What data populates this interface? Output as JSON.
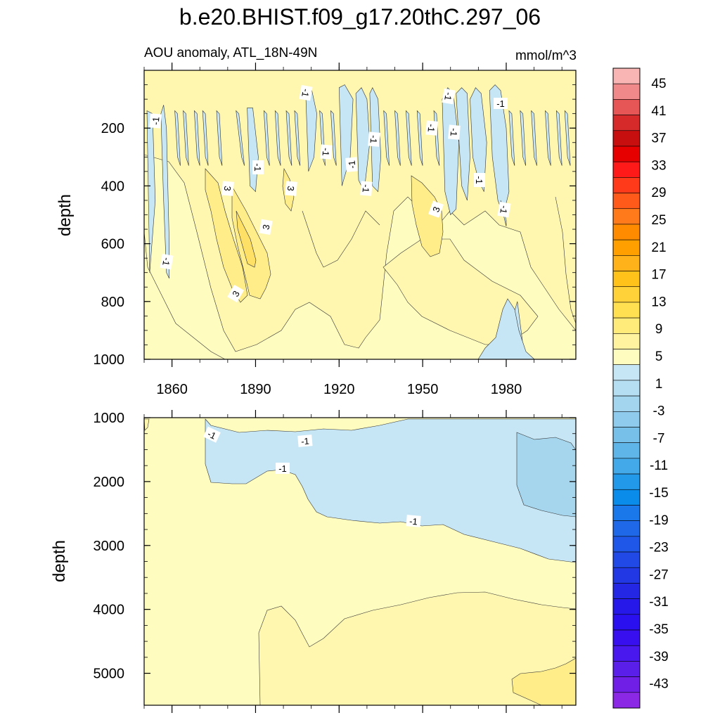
{
  "title": "b.e20.BHIST.f09_g17.20thC.297_06",
  "subtitle_left": "AOU anomaly, ATL_18N-49N",
  "subtitle_right": "mmol/m^3",
  "chart_data": [
    {
      "type": "heatmap",
      "panel": "upper",
      "ylabel": "depth",
      "ylim": [
        0,
        1000
      ],
      "yticks": [
        200,
        400,
        600,
        800,
        1000
      ],
      "xlim": [
        1850,
        2005
      ],
      "xticks": [
        1860,
        1890,
        1920,
        1950,
        1980
      ],
      "xtick_labels": [
        "1860",
        "1890",
        "1920",
        "1950",
        "1980"
      ],
      "background_range": "1 to 5",
      "regions": [
        {
          "range": "-3 to 1",
          "x": [
            [
              1851,
              1853,
              1854,
              1852
            ],
            [
              1856,
              1857,
              1858,
              1859,
              1859,
              1858,
              1857
            ],
            [
              1861,
              1862,
              1863,
              1862
            ],
            [
              1864,
              1865,
              1866,
              1865
            ],
            [
              1868,
              1869,
              1870,
              1869
            ],
            [
              1871,
              1872,
              1873,
              1872
            ],
            [
              1876,
              1877,
              1878,
              1877
            ],
            [
              1883,
              1884,
              1886,
              1885
            ],
            [
              1887,
              1889,
              1891,
              1890,
              1888
            ],
            [
              1893,
              1894,
              1895,
              1894
            ],
            [
              1897,
              1898,
              1899,
              1898
            ],
            [
              1901,
              1902,
              1903,
              1902
            ],
            [
              1904,
              1905,
              1906,
              1905
            ],
            [
              1908,
              1910,
              1912,
              1911,
              1909
            ],
            [
              1913,
              1914,
              1915,
              1914
            ],
            [
              1917,
              1918,
              1919,
              1918
            ],
            [
              1920,
              1922,
              1925,
              1924,
              1921
            ],
            [
              1926,
              1928,
              1930,
              1931,
              1929,
              1927
            ],
            [
              1931,
              1932,
              1934,
              1935,
              1934,
              1932
            ],
            [
              1936,
              1937,
              1938,
              1937
            ],
            [
              1940,
              1941,
              1942,
              1941
            ],
            [
              1944,
              1945,
              1946,
              1945
            ],
            [
              1948,
              1949,
              1950,
              1949
            ],
            [
              1954,
              1955,
              1956,
              1955
            ],
            [
              1957,
              1959,
              1961,
              1963,
              1962,
              1960,
              1958
            ],
            [
              1962,
              1964,
              1966,
              1967,
              1966,
              1964
            ],
            [
              1967,
              1969,
              1971,
              1973,
              1972,
              1970,
              1968
            ],
            [
              1974,
              1976,
              1978,
              1980,
              1981,
              1979,
              1977,
              1975
            ],
            [
              1978,
              1979,
              1980,
              1980,
              1979
            ],
            [
              1981,
              1982,
              1983,
              1982
            ],
            [
              1985,
              1986,
              1987,
              1986
            ],
            [
              1989,
              1990,
              1991,
              1990
            ],
            [
              1994,
              1995,
              1996,
              1995
            ],
            [
              1998,
              1999,
              2000,
              1999
            ],
            [
              2001,
              2002,
              2003,
              2002
            ],
            [
              1978,
              1981,
              1984,
              1986,
              1988
            ]
          ],
          "y": [
            [
              140,
              150,
              450,
              700
            ],
            [
              150,
              120,
              200,
              600,
              720,
              700,
              450
            ],
            [
              140,
              150,
              330,
              300
            ],
            [
              140,
              150,
              330,
              300
            ],
            [
              140,
              150,
              330,
              300
            ],
            [
              140,
              150,
              330,
              300
            ],
            [
              140,
              150,
              330,
              300
            ],
            [
              140,
              150,
              330,
              300
            ],
            [
              130,
              130,
              300,
              420,
              400
            ],
            [
              140,
              150,
              330,
              300
            ],
            [
              140,
              150,
              330,
              300
            ],
            [
              140,
              150,
              330,
              300
            ],
            [
              140,
              150,
              330,
              300
            ],
            [
              80,
              60,
              150,
              300,
              350
            ],
            [
              140,
              150,
              330,
              300
            ],
            [
              140,
              150,
              330,
              300
            ],
            [
              60,
              50,
              100,
              300,
              400
            ],
            [
              80,
              60,
              100,
              250,
              420,
              380
            ],
            [
              80,
              60,
              100,
              300,
              420,
              400
            ],
            [
              140,
              150,
              330,
              300
            ],
            [
              140,
              150,
              330,
              300
            ],
            [
              140,
              150,
              330,
              300
            ],
            [
              140,
              150,
              330,
              300
            ],
            [
              140,
              150,
              330,
              300
            ],
            [
              100,
              60,
              80,
              250,
              480,
              500,
              420
            ],
            [
              80,
              60,
              80,
              300,
              450,
              400
            ],
            [
              100,
              60,
              80,
              250,
              420,
              380,
              300
            ],
            [
              70,
              50,
              70,
              200,
              420,
              500,
              450,
              300
            ],
            [
              450,
              480,
              520,
              540,
              500
            ],
            [
              140,
              150,
              330,
              300
            ],
            [
              140,
              150,
              330,
              300
            ],
            [
              140,
              150,
              330,
              300
            ],
            [
              140,
              150,
              330,
              300
            ],
            [
              140,
              150,
              330,
              300
            ],
            [
              140,
              150,
              330,
              300
            ],
            [
              1000,
              900,
              800,
              950,
              1000
            ]
          ]
        },
        {
          "range": "1 to 5 (light)",
          "description": "broad background band below main columns"
        },
        {
          "range": "5 to 9",
          "description": "warm cores near 1885 and 1953"
        }
      ],
      "contour_labels": [
        "-1",
        "-1",
        "-1",
        "-1",
        "-1",
        "-1",
        "-1",
        "-1",
        "-1",
        "-1",
        "-1",
        "-1",
        "-1",
        "-1",
        "3",
        "3",
        "3",
        "3",
        "3"
      ]
    },
    {
      "type": "heatmap",
      "panel": "lower",
      "ylabel": "depth",
      "ylim": [
        1000,
        5500
      ],
      "yticks": [
        1000,
        2000,
        3000,
        4000,
        5000
      ],
      "xlim": [
        1850,
        2005
      ],
      "xticks": [
        1860,
        1890,
        1920,
        1950,
        1980
      ],
      "contour_labels": [
        "-1",
        "-1",
        "-1",
        "-1"
      ]
    }
  ],
  "colorbar": {
    "labels": [
      "45",
      "41",
      "37",
      "33",
      "29",
      "25",
      "21",
      "17",
      "13",
      "9",
      "5",
      "1",
      "-3",
      "-7",
      "-11",
      "-15",
      "-19",
      "-23",
      "-27",
      "-31",
      "-35",
      "-39",
      "-43"
    ],
    "colors": [
      "#f9b4b4",
      "#f08a8a",
      "#e65656",
      "#d62a2a",
      "#c80f0f",
      "#e60000",
      "#ff1a1a",
      "#ff3a1a",
      "#ff5a1a",
      "#ff7a1a",
      "#ff8c00",
      "#ffa000",
      "#ffb21a",
      "#ffc21a",
      "#ffd23a",
      "#ffe050",
      "#ffeb7a",
      "#fff3a0",
      "#fffcc0",
      "#c6e6f5",
      "#b6def2",
      "#a3d5ef",
      "#8ecbec",
      "#77c0ea",
      "#5fb5e8",
      "#43a9e8",
      "#2399ea",
      "#0a8cea",
      "#1a78ea",
      "#1f68e8",
      "#1f58e8",
      "#2049e6",
      "#2138e4",
      "#2428e4",
      "#2518e8",
      "#2a10ee",
      "#3810f0",
      "#4818ee",
      "#5a20ea",
      "#7020e6",
      "#8a28e6"
    ]
  }
}
